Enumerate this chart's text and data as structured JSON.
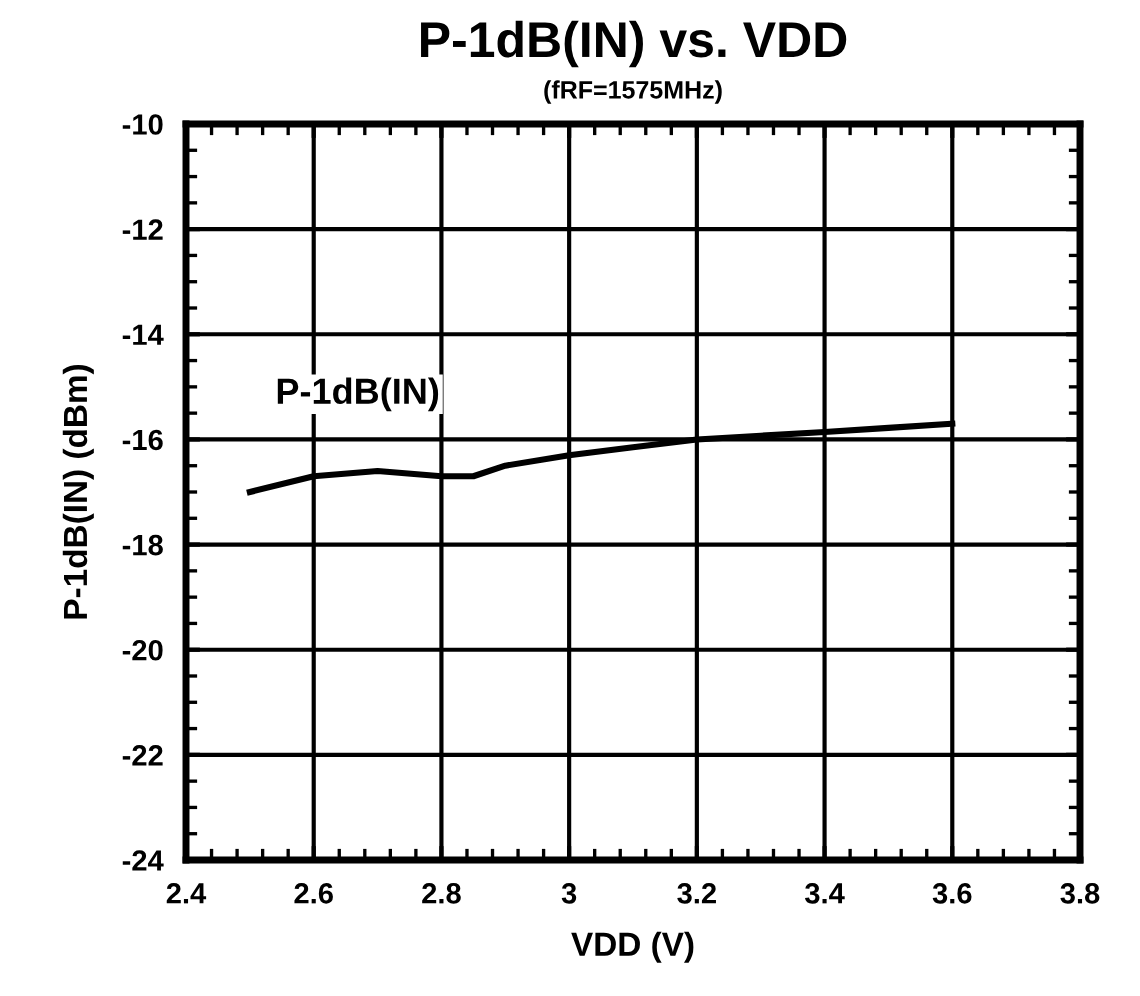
{
  "chart_data": {
    "type": "line",
    "title": "P-1dB(IN) vs. VDD",
    "subtitle": "(fRF=1575MHz)",
    "xlabel": "VDD (V)",
    "ylabel": "P-1dB(IN) (dBm)",
    "x": [
      2.5,
      2.6,
      2.7,
      2.8,
      2.85,
      2.9,
      3.0,
      3.1,
      3.2,
      3.3,
      3.4,
      3.5,
      3.6
    ],
    "series": [
      {
        "name": "P-1dB(IN)",
        "color": "#000000",
        "values": [
          -17.0,
          -16.7,
          -16.6,
          -16.7,
          -16.7,
          -16.5,
          -16.3,
          -16.15,
          -16.0,
          -15.93,
          -15.86,
          -15.78,
          -15.7
        ]
      }
    ],
    "xlim": [
      2.4,
      3.8
    ],
    "xticks": [
      {
        "value": 2.4,
        "label": "2.4"
      },
      {
        "value": 2.6,
        "label": "2.6"
      },
      {
        "value": 2.8,
        "label": "2.8"
      },
      3,
      {
        "value": 3.2,
        "label": "3.2"
      },
      {
        "value": 3.4,
        "label": "3.4"
      },
      {
        "value": 3.6,
        "label": "3.6"
      },
      {
        "value": 3.8,
        "label": "3.8"
      }
    ],
    "ylim": [
      -24,
      -10
    ],
    "yticks": [
      -24,
      -22,
      -20,
      -18,
      -16,
      -14,
      -12,
      -10
    ],
    "grid": true,
    "marker": "none",
    "line_style": "solid"
  }
}
